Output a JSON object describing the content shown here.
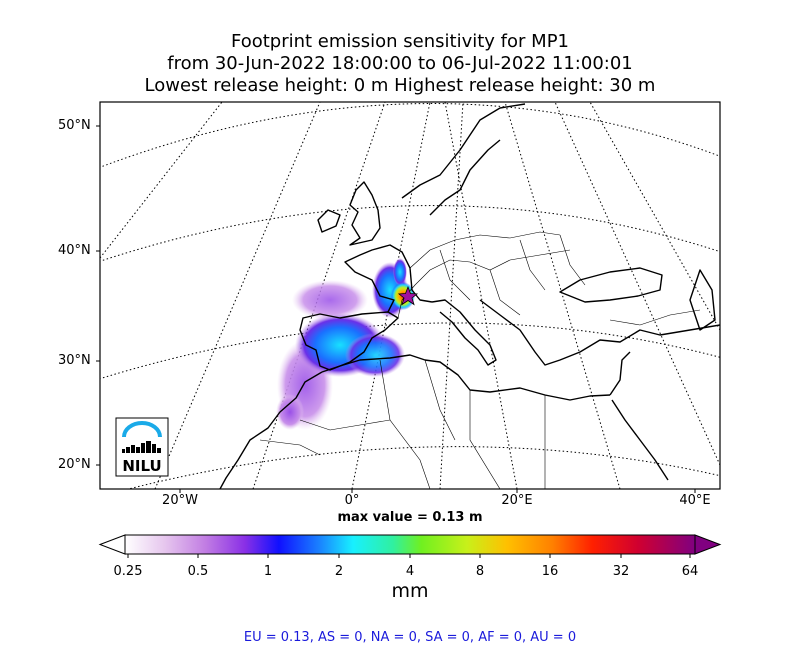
{
  "title": {
    "line1": "Footprint emission sensitivity for MP1",
    "line2": "from 30-Jun-2022 18:00:00 to 06-Jul-2022 11:00:01",
    "line3": "Lowest release height: 0 m      Highest release height: 30 m"
  },
  "map": {
    "lat_labels": [
      "50°N",
      "40°N",
      "30°N",
      "20°N"
    ],
    "lon_labels": [
      "20°W",
      "0°",
      "20°E",
      "40°E"
    ],
    "logo_text": "NILU",
    "max_value": "max value = 0.13 m"
  },
  "colorbar": {
    "ticks": [
      "0.25",
      "0.5",
      "1",
      "2",
      "4",
      "8",
      "16",
      "32",
      "64"
    ],
    "unit": "mm",
    "colors": [
      "#ffffff",
      "#d7a6e6",
      "#9a3fe0",
      "#1010ff",
      "#1b9aff",
      "#18f0ff",
      "#38f08a",
      "#7ff21b",
      "#e8e01a",
      "#ffa500",
      "#ff3b00",
      "#ff0000",
      "#c80040",
      "#8a0a8a"
    ]
  },
  "regions_text": "EU = 0.13,  AS = 0,  NA = 0,  SA = 0,  AF = 0,  AU = 0"
}
